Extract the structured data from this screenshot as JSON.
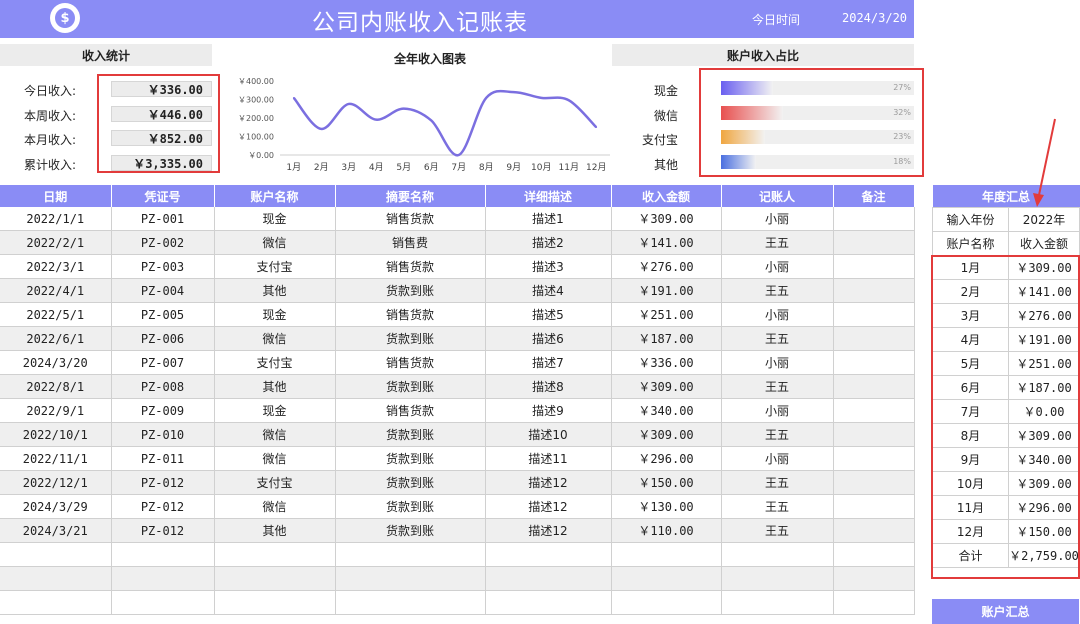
{
  "header": {
    "title": "公司内账收入记账表",
    "date_label": "今日时间",
    "date_value": "2024/3/20",
    "logo_glyph": "$"
  },
  "stats": {
    "title": "收入统计",
    "items": [
      {
        "label": "今日收入:",
        "value": "￥336.00"
      },
      {
        "label": "本周收入:",
        "value": "￥446.00"
      },
      {
        "label": "本月收入:",
        "value": "￥852.00"
      },
      {
        "label": "累计收入:",
        "value": "￥3,335.00"
      }
    ]
  },
  "chart_data": {
    "type": "line",
    "title": "全年收入图表",
    "categories": [
      "1月",
      "2月",
      "3月",
      "4月",
      "5月",
      "6月",
      "7月",
      "8月",
      "9月",
      "10月",
      "11月",
      "12月"
    ],
    "values": [
      309,
      141,
      276,
      191,
      251,
      187,
      0,
      309,
      340,
      309,
      296,
      150
    ],
    "y_ticks": [
      "￥0.00",
      "￥100.00",
      "￥200.00",
      "￥300.00",
      "￥400.00"
    ],
    "ylim": [
      0,
      400
    ],
    "line_color": "#7b6fe0"
  },
  "ratio": {
    "title": "账户收入占比",
    "items": [
      {
        "label": "现金",
        "pct": 27,
        "pct_text": "27%",
        "color": "#6a5ff0"
      },
      {
        "label": "微信",
        "pct": 32,
        "pct_text": "32%",
        "color": "#e8504f"
      },
      {
        "label": "支付宝",
        "pct": 23,
        "pct_text": "23%",
        "color": "#f0a640"
      },
      {
        "label": "其他",
        "pct": 18,
        "pct_text": "18%",
        "color": "#4a6fe0"
      }
    ]
  },
  "table": {
    "headers": [
      "日期",
      "凭证号",
      "账户名称",
      "摘要名称",
      "详细描述",
      "收入金额",
      "记账人",
      "备注"
    ],
    "rows": [
      [
        "2022/1/1",
        "PZ-001",
        "现金",
        "销售货款",
        "描述1",
        "￥309.00",
        "小丽",
        ""
      ],
      [
        "2022/2/1",
        "PZ-002",
        "微信",
        "销售费",
        "描述2",
        "￥141.00",
        "王五",
        ""
      ],
      [
        "2022/3/1",
        "PZ-003",
        "支付宝",
        "销售货款",
        "描述3",
        "￥276.00",
        "小丽",
        ""
      ],
      [
        "2022/4/1",
        "PZ-004",
        "其他",
        "货款到账",
        "描述4",
        "￥191.00",
        "王五",
        ""
      ],
      [
        "2022/5/1",
        "PZ-005",
        "现金",
        "销售货款",
        "描述5",
        "￥251.00",
        "小丽",
        ""
      ],
      [
        "2022/6/1",
        "PZ-006",
        "微信",
        "货款到账",
        "描述6",
        "￥187.00",
        "王五",
        ""
      ],
      [
        "2024/3/20",
        "PZ-007",
        "支付宝",
        "销售货款",
        "描述7",
        "￥336.00",
        "小丽",
        ""
      ],
      [
        "2022/8/1",
        "PZ-008",
        "其他",
        "货款到账",
        "描述8",
        "￥309.00",
        "王五",
        ""
      ],
      [
        "2022/9/1",
        "PZ-009",
        "现金",
        "销售货款",
        "描述9",
        "￥340.00",
        "小丽",
        ""
      ],
      [
        "2022/10/1",
        "PZ-010",
        "微信",
        "货款到账",
        "描述10",
        "￥309.00",
        "王五",
        ""
      ],
      [
        "2022/11/1",
        "PZ-011",
        "微信",
        "货款到账",
        "描述11",
        "￥296.00",
        "小丽",
        ""
      ],
      [
        "2022/12/1",
        "PZ-012",
        "支付宝",
        "货款到账",
        "描述12",
        "￥150.00",
        "王五",
        ""
      ],
      [
        "2024/3/29",
        "PZ-012",
        "微信",
        "货款到账",
        "描述12",
        "￥130.00",
        "王五",
        ""
      ],
      [
        "2024/3/21",
        "PZ-012",
        "其他",
        "货款到账",
        "描述12",
        "￥110.00",
        "王五",
        ""
      ],
      [
        "",
        "",
        "",
        "",
        "",
        "",
        "",
        ""
      ],
      [
        "",
        "",
        "",
        "",
        "",
        "",
        "",
        ""
      ],
      [
        "",
        "",
        "",
        "",
        "",
        "",
        "",
        ""
      ]
    ]
  },
  "yearly": {
    "title": "年度汇总",
    "input_label": "输入年份",
    "input_value": "2022年",
    "col_account": "账户名称",
    "col_amount": "收入金额",
    "rows": [
      [
        "1月",
        "￥309.00"
      ],
      [
        "2月",
        "￥141.00"
      ],
      [
        "3月",
        "￥276.00"
      ],
      [
        "4月",
        "￥191.00"
      ],
      [
        "5月",
        "￥251.00"
      ],
      [
        "6月",
        "￥187.00"
      ],
      [
        "7月",
        "￥0.00"
      ],
      [
        "8月",
        "￥309.00"
      ],
      [
        "9月",
        "￥340.00"
      ],
      [
        "10月",
        "￥309.00"
      ],
      [
        "11月",
        "￥296.00"
      ],
      [
        "12月",
        "￥150.00"
      ]
    ],
    "total_label": "合计",
    "total_value": "￥2,759.00"
  },
  "account_summary": {
    "title": "账户汇总"
  }
}
